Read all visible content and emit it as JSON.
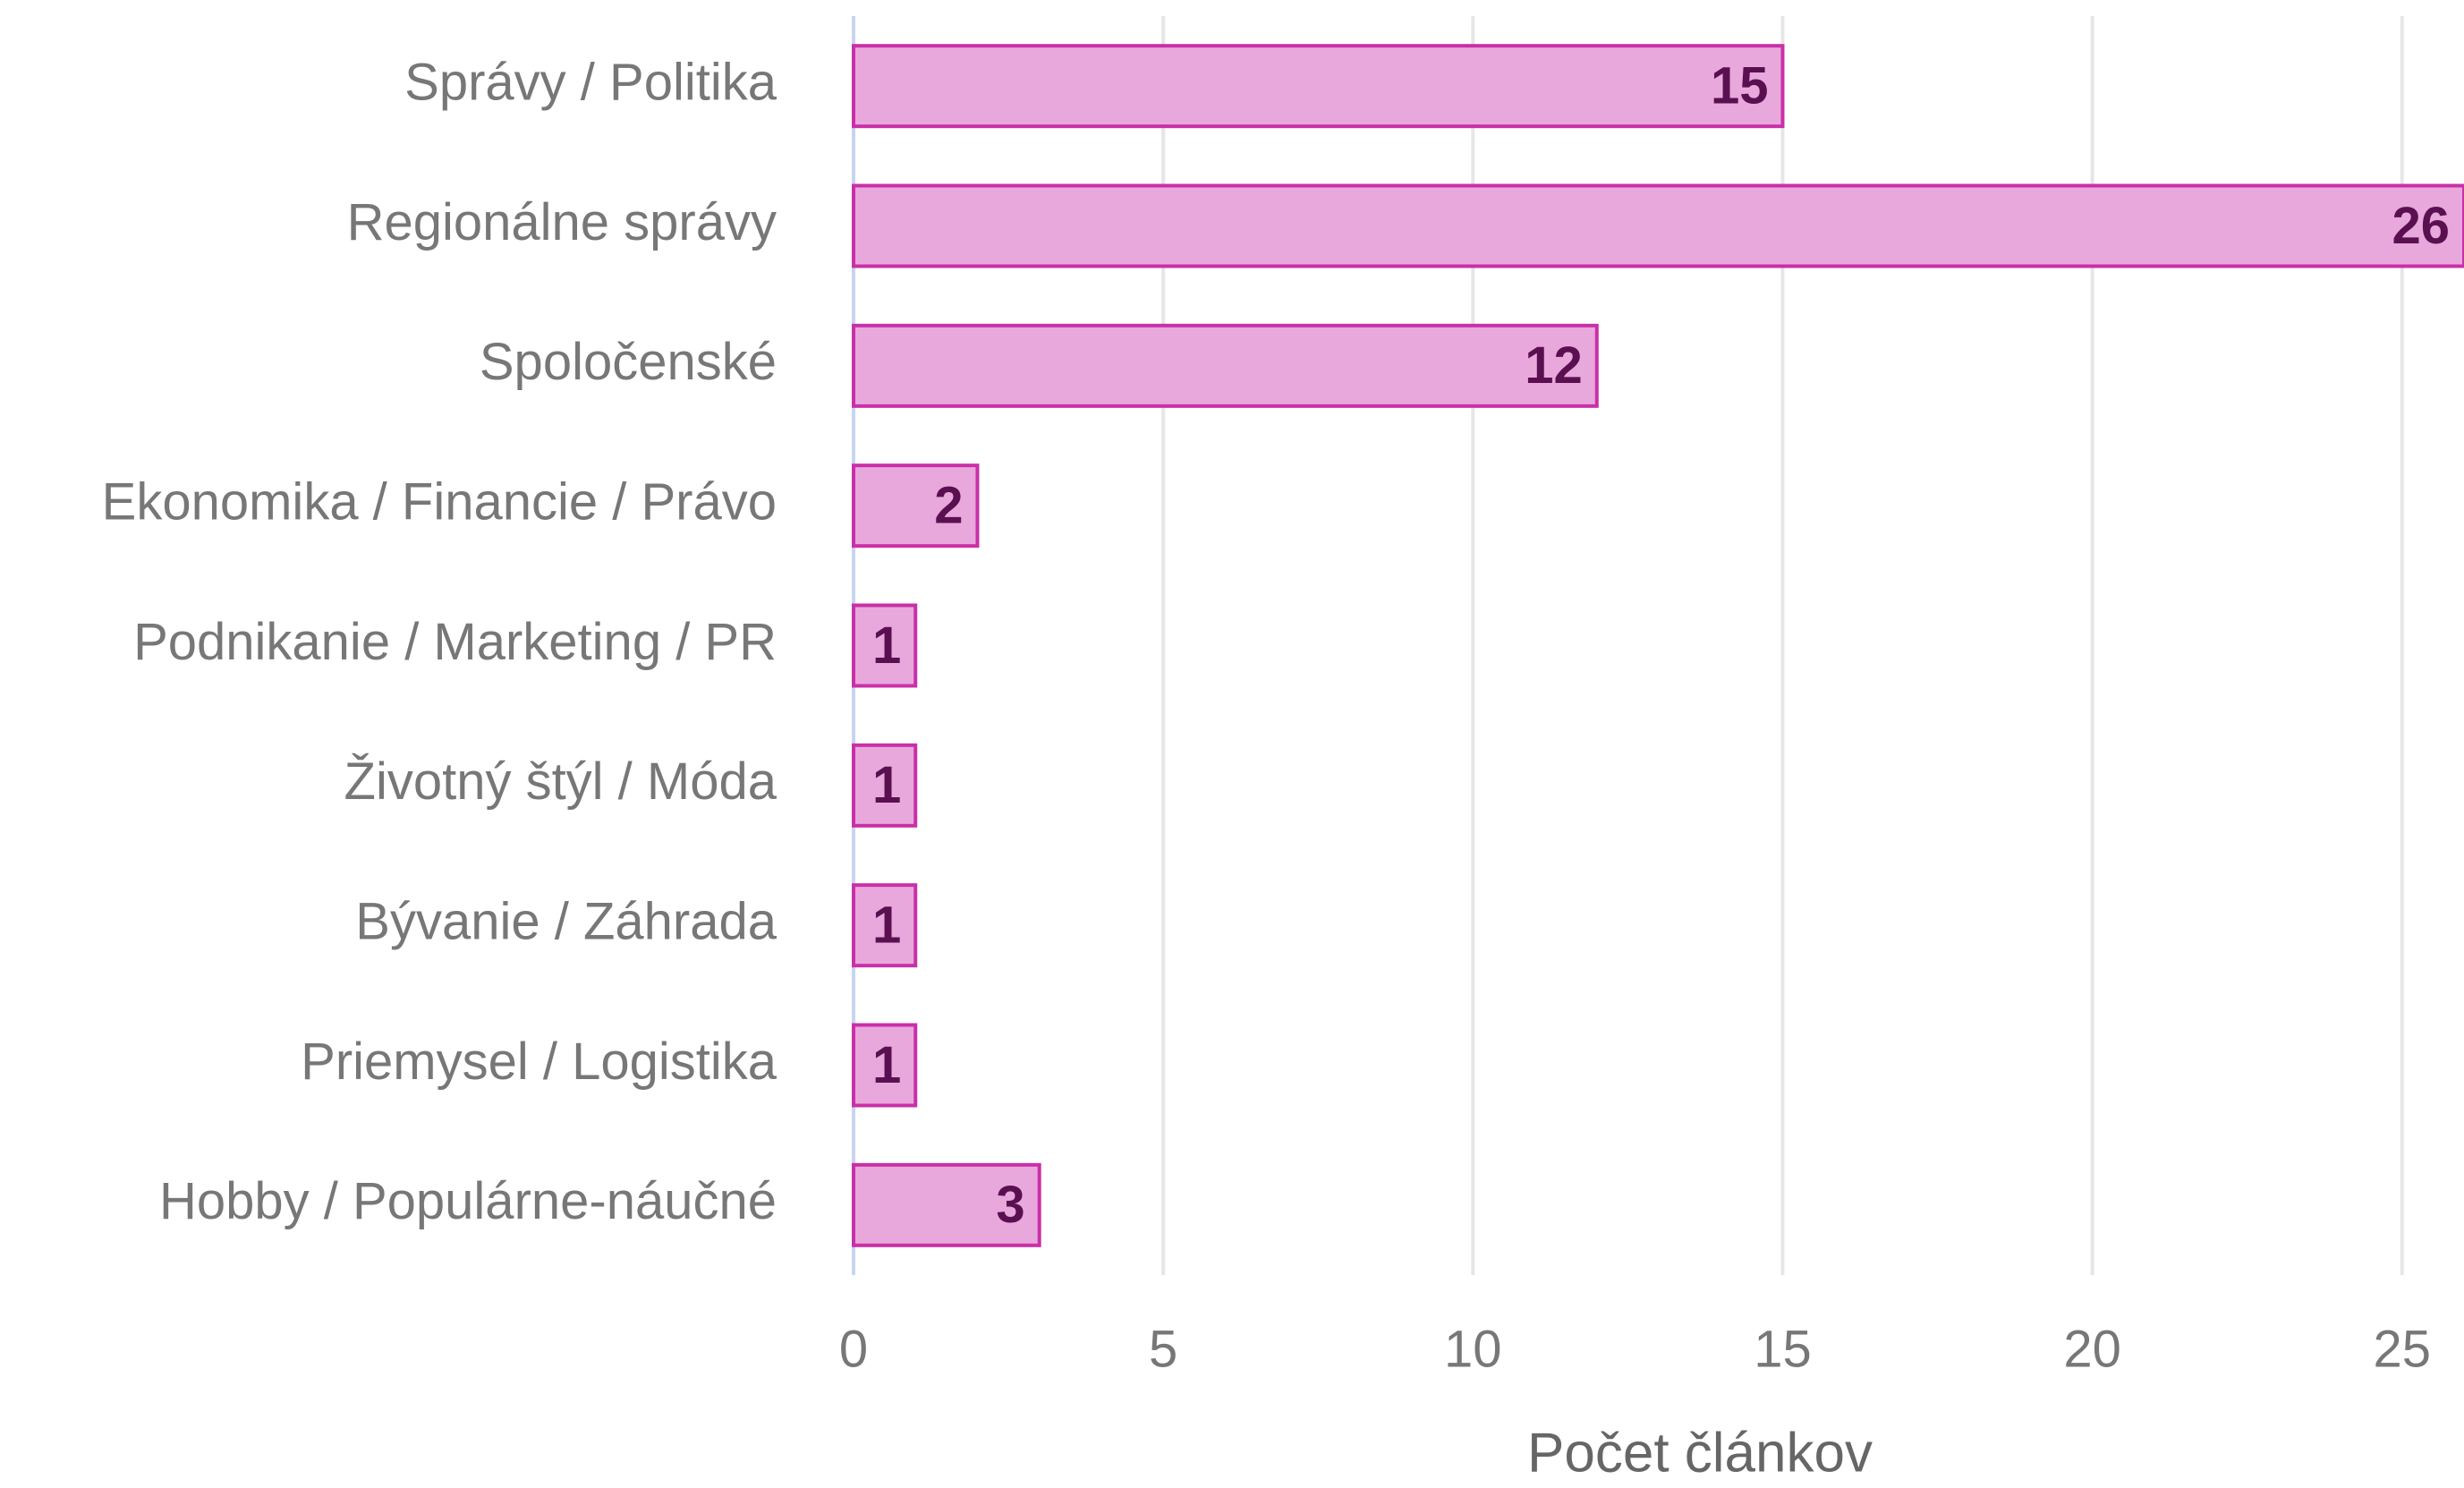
{
  "chart_data": {
    "type": "hbar",
    "x_label": "Počet článkov",
    "categories": [
      "Správy / Politika",
      "Regionálne správy",
      "Spoločenské",
      "Ekonomika / Financie / Právo",
      "Podnikanie / Marketing / PR",
      "Životný štýl / Móda",
      "Bývanie / Záhrada",
      "Priemysel / Logistika",
      "Hobby / Populárne-náučné"
    ],
    "values": [
      15,
      26,
      12,
      2,
      1,
      1,
      1,
      1,
      3
    ],
    "color": "#e8a8dc",
    "edge_color": "#c930a8",
    "xlim": [
      0,
      26
    ],
    "xticks": [
      0,
      5,
      10,
      15,
      20,
      25
    ],
    "grid": true
  }
}
